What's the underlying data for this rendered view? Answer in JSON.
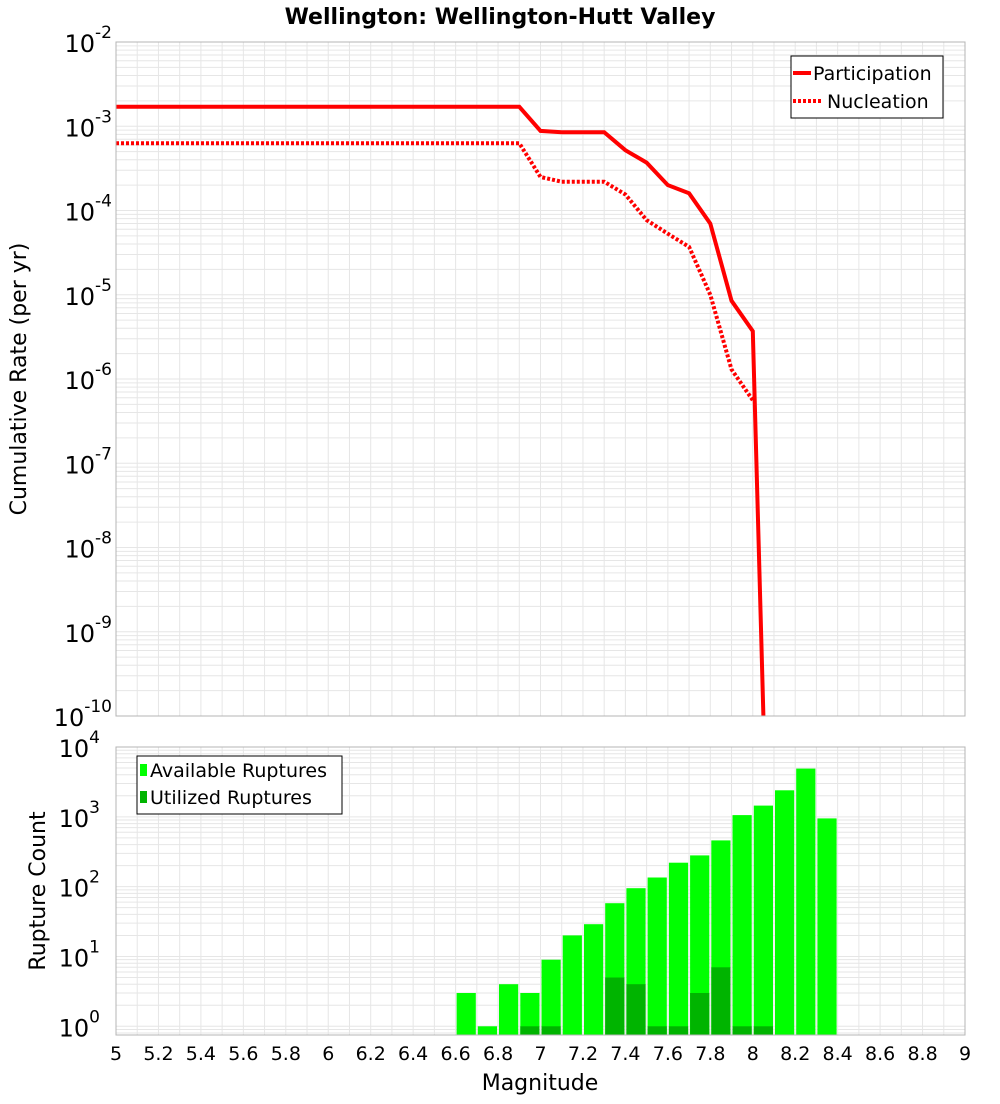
{
  "colors": {
    "participation": "#ff0000",
    "nucleation": "#ff0000",
    "available": "#00ff00",
    "utilized": "#00b400",
    "grid": "#e6e6e6",
    "frame": "#b4b4b4"
  },
  "chart_data": [
    {
      "type": "line",
      "title": "Wellington: Wellington-Hutt Valley",
      "xlabel": "",
      "ylabel": "Cumulative Rate (per yr)",
      "xlim": [
        5,
        9
      ],
      "ylim": [
        1e-10,
        0.01
      ],
      "yscale": "log",
      "y_tick_labels": [
        {
          "base": "10",
          "exp": "-2"
        },
        {
          "base": "10",
          "exp": "-3"
        },
        {
          "base": "10",
          "exp": "-4"
        },
        {
          "base": "10",
          "exp": "-5"
        },
        {
          "base": "10",
          "exp": "-6"
        },
        {
          "base": "10",
          "exp": "-7"
        },
        {
          "base": "10",
          "exp": "-8"
        },
        {
          "base": "10",
          "exp": "-9"
        },
        {
          "base": "10",
          "exp": "-10"
        }
      ],
      "grid": true,
      "legend": "top-right",
      "series": [
        {
          "name": "Participation",
          "style": "solid",
          "x": [
            5.0,
            6.9,
            7.0,
            7.1,
            7.2,
            7.3,
            7.4,
            7.5,
            7.6,
            7.7,
            7.8,
            7.9,
            8.0,
            8.05
          ],
          "y": [
            0.0017,
            0.0017,
            0.00088,
            0.00085,
            0.00085,
            0.00085,
            0.00052,
            0.00037,
            0.0002,
            0.00016,
            7e-05,
            8.5e-06,
            3.7e-06,
            1e-10
          ]
        },
        {
          "name": "Nucleation",
          "style": "dotted",
          "x": [
            5.0,
            6.9,
            7.0,
            7.1,
            7.2,
            7.3,
            7.4,
            7.5,
            7.6,
            7.7,
            7.8,
            7.9,
            8.0
          ],
          "y": [
            0.00063,
            0.00063,
            0.00025,
            0.00022,
            0.00022,
            0.00022,
            0.000155,
            7.7e-05,
            5.3e-05,
            3.7e-05,
            1e-05,
            1.3e-06,
            5.6e-07
          ]
        }
      ]
    },
    {
      "type": "bar",
      "title": "",
      "xlabel": "Magnitude",
      "ylabel": "Rupture Count",
      "xlim": [
        5,
        9
      ],
      "ylim": [
        0.75,
        10000
      ],
      "yscale": "log",
      "y_tick_labels": [
        {
          "base": "10",
          "exp": "4"
        },
        {
          "base": "10",
          "exp": "3"
        },
        {
          "base": "10",
          "exp": "2"
        },
        {
          "base": "10",
          "exp": "1"
        },
        {
          "base": "10",
          "exp": "0"
        }
      ],
      "x_tick_labels": [
        "5",
        "5.2",
        "5.4",
        "5.6",
        "5.8",
        "6",
        "6.2",
        "6.4",
        "6.6",
        "6.8",
        "7",
        "7.2",
        "7.4",
        "7.6",
        "7.8",
        "8",
        "8.2",
        "8.4",
        "8.6",
        "8.8",
        "9"
      ],
      "grid": true,
      "legend": "top-left",
      "bin_width": 0.1,
      "series": [
        {
          "name": "Available Ruptures",
          "x": [
            6.65,
            6.75,
            6.85,
            6.95,
            7.05,
            7.15,
            7.25,
            7.35,
            7.45,
            7.55,
            7.65,
            7.75,
            7.85,
            7.95,
            8.05,
            8.15,
            8.25,
            8.35
          ],
          "values": [
            3,
            1,
            4,
            3,
            9,
            20,
            29,
            58,
            95,
            135,
            220,
            280,
            460,
            1060,
            1450,
            2400,
            4900,
            950
          ]
        },
        {
          "name": "Utilized Ruptures",
          "x": [
            6.95,
            7.05,
            7.35,
            7.45,
            7.55,
            7.65,
            7.75,
            7.85,
            7.95,
            8.05
          ],
          "values": [
            1,
            1,
            5,
            4,
            1,
            1,
            3,
            7,
            1,
            1
          ]
        }
      ]
    }
  ]
}
